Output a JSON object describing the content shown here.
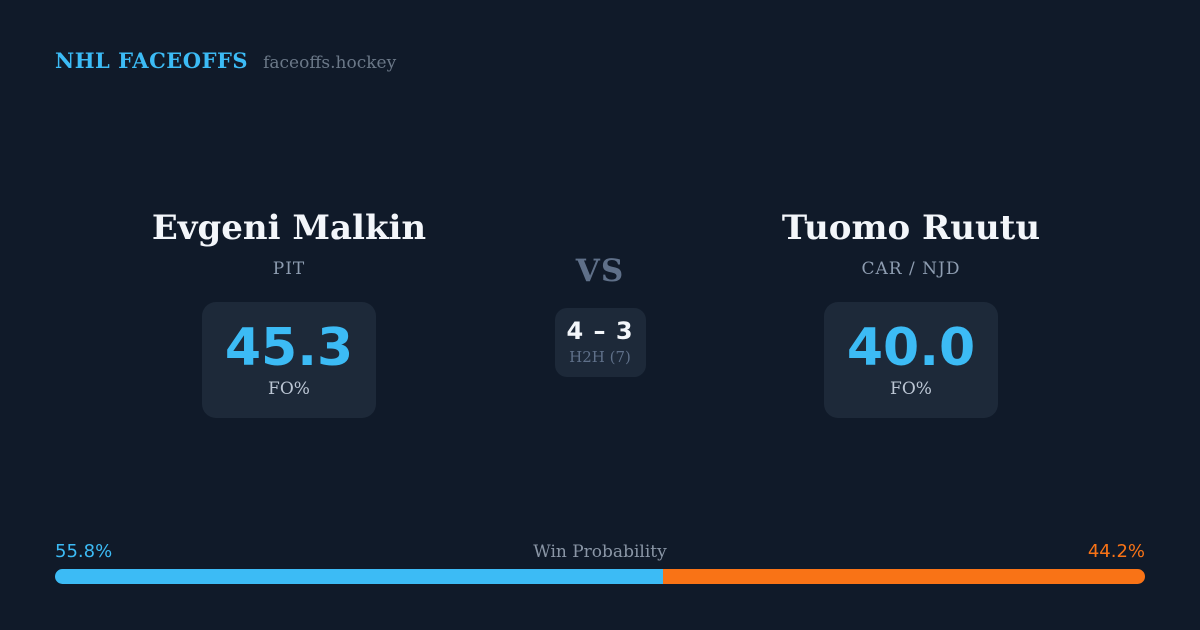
{
  "header": {
    "brand": "NHL FACEOFFS",
    "site": "faceoffs.hockey"
  },
  "players": {
    "left": {
      "name": "Evgeni Malkin",
      "teams": "PIT",
      "fo_pct": "45.3",
      "stat_label": "FO%"
    },
    "right": {
      "name": "Tuomo Ruutu",
      "teams": "CAR / NJD",
      "fo_pct": "40.0",
      "stat_label": "FO%"
    }
  },
  "matchup": {
    "vs_label": "VS",
    "h2h_score": "4 – 3",
    "h2h_label": "H2H (7)"
  },
  "win_probability": {
    "label": "Win Probability",
    "left_pct_label": "55.8%",
    "right_pct_label": "44.2%",
    "left_value": 55.8,
    "right_value": 44.2
  },
  "colors": {
    "background": "#101a29",
    "card": "#1d2939",
    "accent_blue": "#3cbbf5",
    "accent_orange": "#f97316",
    "text_primary": "#f3f6fa",
    "text_muted": "#8e9db1",
    "text_dim": "#5f7089"
  }
}
